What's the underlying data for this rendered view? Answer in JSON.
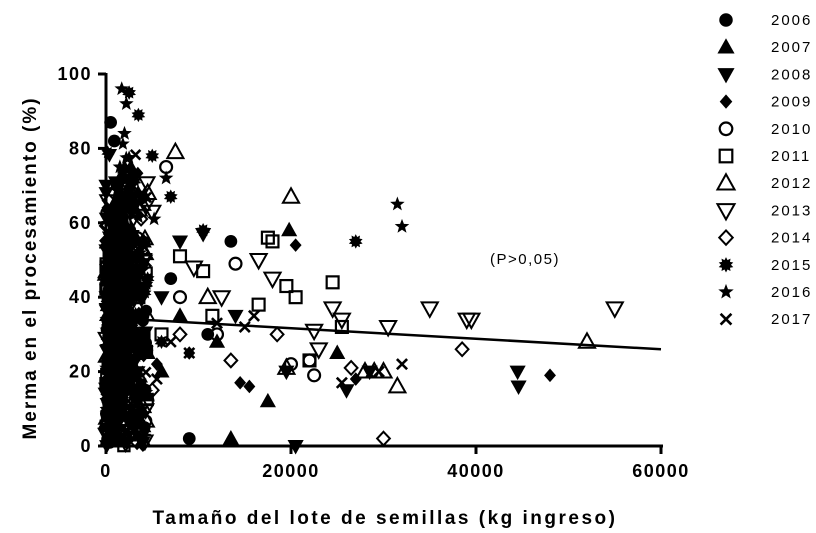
{
  "chart_data": {
    "type": "scatter",
    "xlabel": "Tamaño del lote de semillas (kg ingreso)",
    "ylabel": "Merma en el procesamiento (%)",
    "xlim": [
      0,
      60000
    ],
    "ylim": [
      0,
      100
    ],
    "xticks": [
      "0",
      "20000",
      "40000",
      "60000"
    ],
    "yticks": [
      "0",
      "20",
      "40",
      "60",
      "80",
      "100"
    ],
    "annotation": "(P>0,05)",
    "trendline": {
      "x": [
        0,
        60000
      ],
      "y": [
        34.5,
        26
      ]
    },
    "series": [
      {
        "name": "2006",
        "marker": "circle-filled",
        "points": [
          [
            500,
            87
          ],
          [
            900,
            82
          ],
          [
            1200,
            70
          ],
          [
            800,
            60
          ],
          [
            1500,
            50
          ],
          [
            2000,
            45
          ],
          [
            2500,
            40
          ],
          [
            1000,
            35
          ],
          [
            3000,
            30
          ],
          [
            1800,
            28
          ],
          [
            700,
            25
          ],
          [
            2200,
            20
          ],
          [
            400,
            15
          ],
          [
            1300,
            10
          ],
          [
            9000,
            2
          ],
          [
            13500,
            55
          ],
          [
            11000,
            30
          ],
          [
            7000,
            45
          ],
          [
            4000,
            35
          ]
        ]
      },
      {
        "name": "2007",
        "marker": "triangle-up-filled",
        "points": [
          [
            13500,
            2
          ],
          [
            17500,
            12
          ],
          [
            19800,
            58
          ],
          [
            4500,
            25
          ],
          [
            6000,
            20
          ],
          [
            3000,
            8
          ],
          [
            8000,
            35
          ],
          [
            12000,
            28
          ],
          [
            1500,
            45
          ],
          [
            2500,
            55
          ],
          [
            25000,
            25
          ]
        ]
      },
      {
        "name": "2008",
        "marker": "triangle-down-filled",
        "points": [
          [
            20500,
            0
          ],
          [
            44500,
            20
          ],
          [
            44600,
            16
          ],
          [
            28500,
            20
          ],
          [
            26000,
            15
          ],
          [
            10500,
            57
          ],
          [
            8000,
            55
          ],
          [
            14000,
            35
          ],
          [
            19500,
            20
          ],
          [
            3500,
            30
          ],
          [
            6000,
            40
          ],
          [
            2500,
            65
          ]
        ]
      },
      {
        "name": "2009",
        "marker": "diamond-filled",
        "points": [
          [
            48000,
            19
          ],
          [
            20500,
            54
          ],
          [
            15500,
            16
          ],
          [
            14500,
            17
          ],
          [
            9000,
            25
          ],
          [
            3500,
            30
          ],
          [
            5500,
            22
          ],
          [
            2000,
            38
          ],
          [
            27000,
            18
          ]
        ]
      },
      {
        "name": "2010",
        "marker": "circle-open",
        "points": [
          [
            14000,
            49
          ],
          [
            20000,
            22
          ],
          [
            22500,
            19
          ],
          [
            22000,
            23
          ],
          [
            6500,
            75
          ],
          [
            3000,
            45
          ],
          [
            8000,
            40
          ],
          [
            12000,
            30
          ],
          [
            1500,
            55
          ]
        ]
      },
      {
        "name": "2011",
        "marker": "square-open",
        "points": [
          [
            24500,
            44
          ],
          [
            22000,
            23
          ],
          [
            18000,
            55
          ],
          [
            17500,
            56
          ],
          [
            19500,
            43
          ],
          [
            20500,
            40
          ],
          [
            16500,
            38
          ],
          [
            25500,
            32
          ],
          [
            10500,
            47
          ],
          [
            8000,
            51
          ],
          [
            6000,
            30
          ],
          [
            11500,
            35
          ],
          [
            3500,
            40
          ],
          [
            2000,
            60
          ]
        ]
      },
      {
        "name": "2012",
        "marker": "triangle-up-open",
        "points": [
          [
            52000,
            28
          ],
          [
            20000,
            67
          ],
          [
            30000,
            20
          ],
          [
            31500,
            16
          ],
          [
            19500,
            21
          ],
          [
            29000,
            20
          ],
          [
            28000,
            20
          ],
          [
            11000,
            40
          ],
          [
            7500,
            79
          ],
          [
            4500,
            68
          ],
          [
            3000,
            25
          ]
        ]
      },
      {
        "name": "2013",
        "marker": "triangle-down-open",
        "points": [
          [
            55000,
            37
          ],
          [
            39000,
            34
          ],
          [
            39500,
            34
          ],
          [
            35000,
            37
          ],
          [
            30500,
            32
          ],
          [
            24500,
            37
          ],
          [
            25500,
            34
          ],
          [
            22500,
            31
          ],
          [
            23000,
            26
          ],
          [
            16500,
            50
          ],
          [
            18000,
            45
          ],
          [
            12500,
            40
          ],
          [
            9500,
            48
          ],
          [
            5000,
            63
          ],
          [
            4000,
            50
          ],
          [
            2000,
            42
          ]
        ]
      },
      {
        "name": "2014",
        "marker": "diamond-open",
        "points": [
          [
            30000,
            2
          ],
          [
            38500,
            26
          ],
          [
            26500,
            21
          ],
          [
            18500,
            30
          ],
          [
            13500,
            23
          ],
          [
            8000,
            30
          ],
          [
            5000,
            15
          ],
          [
            2500,
            25
          ]
        ]
      },
      {
        "name": "2015",
        "marker": "burst-filled",
        "points": [
          [
            2500,
            95
          ],
          [
            3500,
            89
          ],
          [
            7000,
            67
          ],
          [
            10500,
            58
          ],
          [
            27000,
            55
          ],
          [
            5000,
            78
          ],
          [
            1800,
            55
          ],
          [
            3000,
            35
          ],
          [
            4500,
            45
          ],
          [
            6000,
            28
          ]
        ]
      },
      {
        "name": "2016",
        "marker": "star-filled",
        "points": [
          [
            1700,
            96
          ],
          [
            2200,
            92
          ],
          [
            2000,
            84
          ],
          [
            6500,
            72
          ],
          [
            5200,
            61
          ],
          [
            31500,
            65
          ],
          [
            32000,
            59
          ],
          [
            1500,
            75
          ],
          [
            3000,
            50
          ],
          [
            2500,
            40
          ]
        ]
      },
      {
        "name": "2017",
        "marker": "cross",
        "points": [
          [
            32000,
            22
          ],
          [
            29500,
            20
          ],
          [
            25500,
            17
          ],
          [
            15000,
            32
          ],
          [
            16000,
            35
          ],
          [
            9000,
            25
          ],
          [
            5500,
            18
          ],
          [
            7000,
            28
          ],
          [
            12000,
            33
          ],
          [
            3500,
            20
          ],
          [
            2500,
            30
          ]
        ]
      }
    ],
    "dense_cluster": {
      "x_range": [
        0,
        4500
      ],
      "y_range": [
        0,
        85
      ]
    },
    "grid": false,
    "legend_position": "right"
  }
}
